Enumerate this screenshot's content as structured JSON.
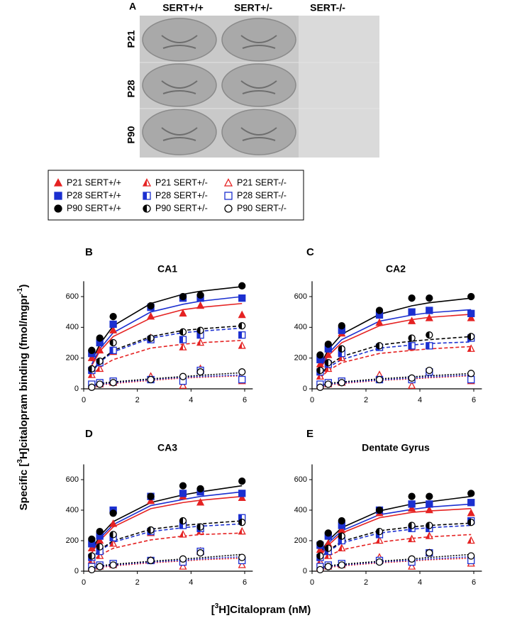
{
  "panel_a": {
    "label": "A",
    "columns": [
      "SERT+/+",
      "SERT+/-",
      "SERT-/-"
    ],
    "rows": [
      "P21",
      "P28",
      "P90"
    ]
  },
  "legend": [
    {
      "name": "P21 SERT+/+",
      "color": "#e52222",
      "marker": "triangle",
      "fill": "filled"
    },
    {
      "name": "P21 SERT+/-",
      "color": "#e52222",
      "marker": "triangle",
      "fill": "half"
    },
    {
      "name": "P21 SERT-/-",
      "color": "#e52222",
      "marker": "triangle",
      "fill": "open"
    },
    {
      "name": "P28 SERT+/+",
      "color": "#1b2fd0",
      "marker": "square",
      "fill": "filled"
    },
    {
      "name": "P28 SERT+/-",
      "color": "#1b2fd0",
      "marker": "square",
      "fill": "half"
    },
    {
      "name": "P28 SERT-/-",
      "color": "#1b2fd0",
      "marker": "square",
      "fill": "open"
    },
    {
      "name": "P90 SERT+/+",
      "color": "#000000",
      "marker": "circle",
      "fill": "filled"
    },
    {
      "name": "P90 SERT+/-",
      "color": "#000000",
      "marker": "circle",
      "fill": "half"
    },
    {
      "name": "P90 SERT-/-",
      "color": "#000000",
      "marker": "circle",
      "fill": "open"
    }
  ],
  "y_axis_label": {
    "parts": [
      "Specific [",
      "3",
      "H]citalopram binding (fmol/mgpr",
      "-1",
      ")"
    ],
    "superscript": [
      1,
      3
    ]
  },
  "x_axis_label": {
    "parts": [
      "[",
      "3",
      "H]Citalopram (nM)"
    ],
    "superscript": [
      1
    ]
  },
  "chart_data": [
    {
      "type": "scatter",
      "label": "B",
      "title": "CA1",
      "x": [
        0.3,
        0.6,
        1.1,
        2.5,
        3.7,
        4.35,
        5.9
      ],
      "xlim": [
        0,
        6.3
      ],
      "xticks": [
        0,
        2,
        4,
        6
      ],
      "ylim": [
        0,
        700
      ],
      "yticks": [
        0,
        200,
        400,
        600
      ],
      "series": [
        {
          "legend": 0,
          "line_style": "solid",
          "values": [
            200,
            250,
            380,
            470,
            490,
            540,
            480
          ],
          "fit": [
            150,
            245,
            340,
            460,
            515,
            530,
            555
          ]
        },
        {
          "legend": 3,
          "line_style": "solid",
          "values": [
            230,
            300,
            420,
            530,
            590,
            590,
            590
          ],
          "fit": [
            160,
            260,
            365,
            500,
            550,
            570,
            600
          ]
        },
        {
          "legend": 6,
          "line_style": "solid",
          "values": [
            250,
            330,
            470,
            540,
            600,
            610,
            670
          ],
          "fit": [
            180,
            290,
            410,
            555,
            615,
            635,
            665
          ]
        },
        {
          "legend": 1,
          "line_style": "dashed",
          "values": [
            90,
            130,
            240,
            330,
            270,
            300,
            280
          ],
          "fit": [
            85,
            140,
            190,
            265,
            290,
            300,
            315
          ]
        },
        {
          "legend": 4,
          "line_style": "dashed",
          "values": [
            120,
            170,
            250,
            320,
            320,
            350,
            350
          ],
          "fit": [
            105,
            175,
            240,
            330,
            365,
            375,
            395
          ]
        },
        {
          "legend": 7,
          "line_style": "dashed",
          "values": [
            130,
            180,
            300,
            330,
            370,
            380,
            410
          ],
          "fit": [
            110,
            180,
            250,
            340,
            380,
            390,
            410
          ]
        },
        {
          "legend": 2,
          "line_style": "dotted",
          "values": [
            20,
            30,
            40,
            80,
            20,
            130,
            50
          ],
          "fit": [
            15,
            25,
            35,
            55,
            70,
            75,
            85
          ]
        },
        {
          "legend": 5,
          "line_style": "dotted",
          "values": [
            30,
            40,
            50,
            60,
            50,
            120,
            60
          ],
          "fit": [
            20,
            30,
            40,
            60,
            75,
            80,
            90
          ]
        },
        {
          "legend": 8,
          "line_style": "dotted",
          "values": [
            10,
            30,
            40,
            60,
            80,
            110,
            110
          ],
          "fit": [
            25,
            35,
            45,
            65,
            80,
            88,
            105
          ]
        }
      ]
    },
    {
      "type": "scatter",
      "label": "C",
      "title": "CA2",
      "x": [
        0.3,
        0.6,
        1.1,
        2.5,
        3.7,
        4.35,
        5.9
      ],
      "xlim": [
        0,
        6.3
      ],
      "xticks": [
        0,
        2,
        4,
        6
      ],
      "ylim": [
        0,
        700
      ],
      "yticks": [
        0,
        200,
        400,
        600
      ],
      "series": [
        {
          "legend": 0,
          "line_style": "solid",
          "values": [
            160,
            220,
            360,
            430,
            440,
            460,
            460
          ],
          "fit": [
            130,
            215,
            300,
            410,
            450,
            465,
            485
          ]
        },
        {
          "legend": 3,
          "line_style": "solid",
          "values": [
            190,
            260,
            380,
            480,
            500,
            510,
            490
          ],
          "fit": [
            140,
            230,
            320,
            440,
            480,
            495,
            515
          ]
        },
        {
          "legend": 6,
          "line_style": "solid",
          "values": [
            220,
            290,
            410,
            510,
            590,
            590,
            600
          ],
          "fit": [
            150,
            255,
            355,
            485,
            540,
            560,
            590
          ]
        },
        {
          "legend": 1,
          "line_style": "dashed",
          "values": [
            80,
            130,
            200,
            270,
            270,
            280,
            260
          ],
          "fit": [
            70,
            120,
            170,
            230,
            250,
            260,
            275
          ]
        },
        {
          "legend": 4,
          "line_style": "dashed",
          "values": [
            110,
            160,
            230,
            270,
            280,
            280,
            330
          ],
          "fit": [
            85,
            140,
            190,
            265,
            285,
            295,
            305
          ]
        },
        {
          "legend": 7,
          "line_style": "dashed",
          "values": [
            120,
            170,
            260,
            280,
            330,
            350,
            340
          ],
          "fit": [
            90,
            150,
            210,
            285,
            310,
            320,
            340
          ]
        },
        {
          "legend": 2,
          "line_style": "dotted",
          "values": [
            20,
            30,
            40,
            90,
            20,
            110,
            50
          ],
          "fit": [
            15,
            25,
            35,
            55,
            65,
            72,
            85
          ]
        },
        {
          "legend": 5,
          "line_style": "dotted",
          "values": [
            30,
            40,
            50,
            60,
            60,
            110,
            60
          ],
          "fit": [
            20,
            30,
            40,
            58,
            70,
            77,
            90
          ]
        },
        {
          "legend": 8,
          "line_style": "dotted",
          "values": [
            10,
            30,
            40,
            60,
            70,
            120,
            100
          ],
          "fit": [
            25,
            35,
            45,
            65,
            78,
            85,
            100
          ]
        }
      ]
    },
    {
      "type": "scatter",
      "label": "D",
      "title": "CA3",
      "x": [
        0.3,
        0.6,
        1.1,
        2.5,
        3.7,
        4.35,
        5.9
      ],
      "xlim": [
        0,
        6.3
      ],
      "xticks": [
        0,
        2,
        4,
        6
      ],
      "ylim": [
        0,
        700
      ],
      "yticks": [
        0,
        200,
        400,
        600
      ],
      "series": [
        {
          "legend": 0,
          "line_style": "solid",
          "values": [
            150,
            200,
            310,
            460,
            490,
            450,
            480
          ],
          "fit": [
            120,
            200,
            290,
            410,
            450,
            465,
            490
          ]
        },
        {
          "legend": 3,
          "line_style": "solid",
          "values": [
            180,
            230,
            400,
            490,
            510,
            520,
            510
          ],
          "fit": [
            130,
            215,
            305,
            430,
            470,
            490,
            520
          ]
        },
        {
          "legend": 6,
          "line_style": "solid",
          "values": [
            210,
            260,
            380,
            490,
            560,
            540,
            590
          ],
          "fit": [
            140,
            230,
            325,
            450,
            500,
            520,
            560
          ]
        },
        {
          "legend": 1,
          "line_style": "dashed",
          "values": [
            70,
            100,
            180,
            250,
            240,
            260,
            260
          ],
          "fit": [
            65,
            105,
            150,
            205,
            230,
            240,
            250
          ]
        },
        {
          "legend": 4,
          "line_style": "dashed",
          "values": [
            90,
            130,
            220,
            260,
            300,
            280,
            350
          ],
          "fit": [
            85,
            135,
            190,
            260,
            285,
            295,
            310
          ]
        },
        {
          "legend": 7,
          "line_style": "dashed",
          "values": [
            100,
            160,
            240,
            270,
            330,
            290,
            320
          ],
          "fit": [
            90,
            140,
            200,
            275,
            300,
            310,
            330
          ]
        },
        {
          "legend": 2,
          "line_style": "dotted",
          "values": [
            20,
            30,
            40,
            70,
            30,
            130,
            40
          ],
          "fit": [
            15,
            25,
            35,
            55,
            67,
            75,
            85
          ]
        },
        {
          "legend": 5,
          "line_style": "dotted",
          "values": [
            30,
            40,
            50,
            70,
            60,
            130,
            70
          ],
          "fit": [
            20,
            30,
            40,
            60,
            72,
            80,
            95
          ]
        },
        {
          "legend": 8,
          "line_style": "dotted",
          "values": [
            10,
            30,
            40,
            70,
            80,
            120,
            90
          ],
          "fit": [
            25,
            35,
            45,
            65,
            80,
            88,
            110
          ]
        }
      ]
    },
    {
      "type": "scatter",
      "label": "E",
      "title": "Dentate Gyrus",
      "x": [
        0.3,
        0.6,
        1.1,
        2.5,
        3.7,
        4.35,
        5.9
      ],
      "xlim": [
        0,
        6.3
      ],
      "xticks": [
        0,
        2,
        4,
        6
      ],
      "ylim": [
        0,
        700
      ],
      "yticks": [
        0,
        200,
        400,
        600
      ],
      "series": [
        {
          "legend": 0,
          "line_style": "solid",
          "values": [
            140,
            180,
            270,
            380,
            410,
            400,
            380
          ],
          "fit": [
            100,
            170,
            250,
            350,
            385,
            395,
            410
          ]
        },
        {
          "legend": 3,
          "line_style": "solid",
          "values": [
            170,
            230,
            300,
            400,
            440,
            440,
            450
          ],
          "fit": [
            110,
            185,
            265,
            370,
            405,
            420,
            440
          ]
        },
        {
          "legend": 6,
          "line_style": "solid",
          "values": [
            180,
            250,
            330,
            400,
            490,
            490,
            510
          ],
          "fit": [
            120,
            200,
            285,
            395,
            440,
            455,
            490
          ]
        },
        {
          "legend": 1,
          "line_style": "dashed",
          "values": [
            60,
            100,
            150,
            200,
            210,
            230,
            200
          ],
          "fit": [
            60,
            100,
            140,
            190,
            215,
            225,
            240
          ]
        },
        {
          "legend": 4,
          "line_style": "dashed",
          "values": [
            90,
            130,
            200,
            240,
            280,
            280,
            330
          ],
          "fit": [
            80,
            130,
            185,
            250,
            275,
            285,
            300
          ]
        },
        {
          "legend": 7,
          "line_style": "dashed",
          "values": [
            100,
            150,
            230,
            260,
            300,
            300,
            320
          ],
          "fit": [
            85,
            135,
            195,
            265,
            290,
            300,
            315
          ]
        },
        {
          "legend": 2,
          "line_style": "dotted",
          "values": [
            20,
            30,
            40,
            90,
            30,
            120,
            50
          ],
          "fit": [
            15,
            25,
            35,
            55,
            67,
            75,
            85
          ]
        },
        {
          "legend": 5,
          "line_style": "dotted",
          "values": [
            30,
            40,
            50,
            70,
            60,
            120,
            70
          ],
          "fit": [
            20,
            30,
            40,
            60,
            72,
            80,
            95
          ]
        },
        {
          "legend": 8,
          "line_style": "dotted",
          "values": [
            10,
            30,
            40,
            60,
            80,
            120,
            100
          ],
          "fit": [
            25,
            35,
            45,
            65,
            80,
            90,
            110
          ]
        }
      ]
    }
  ]
}
